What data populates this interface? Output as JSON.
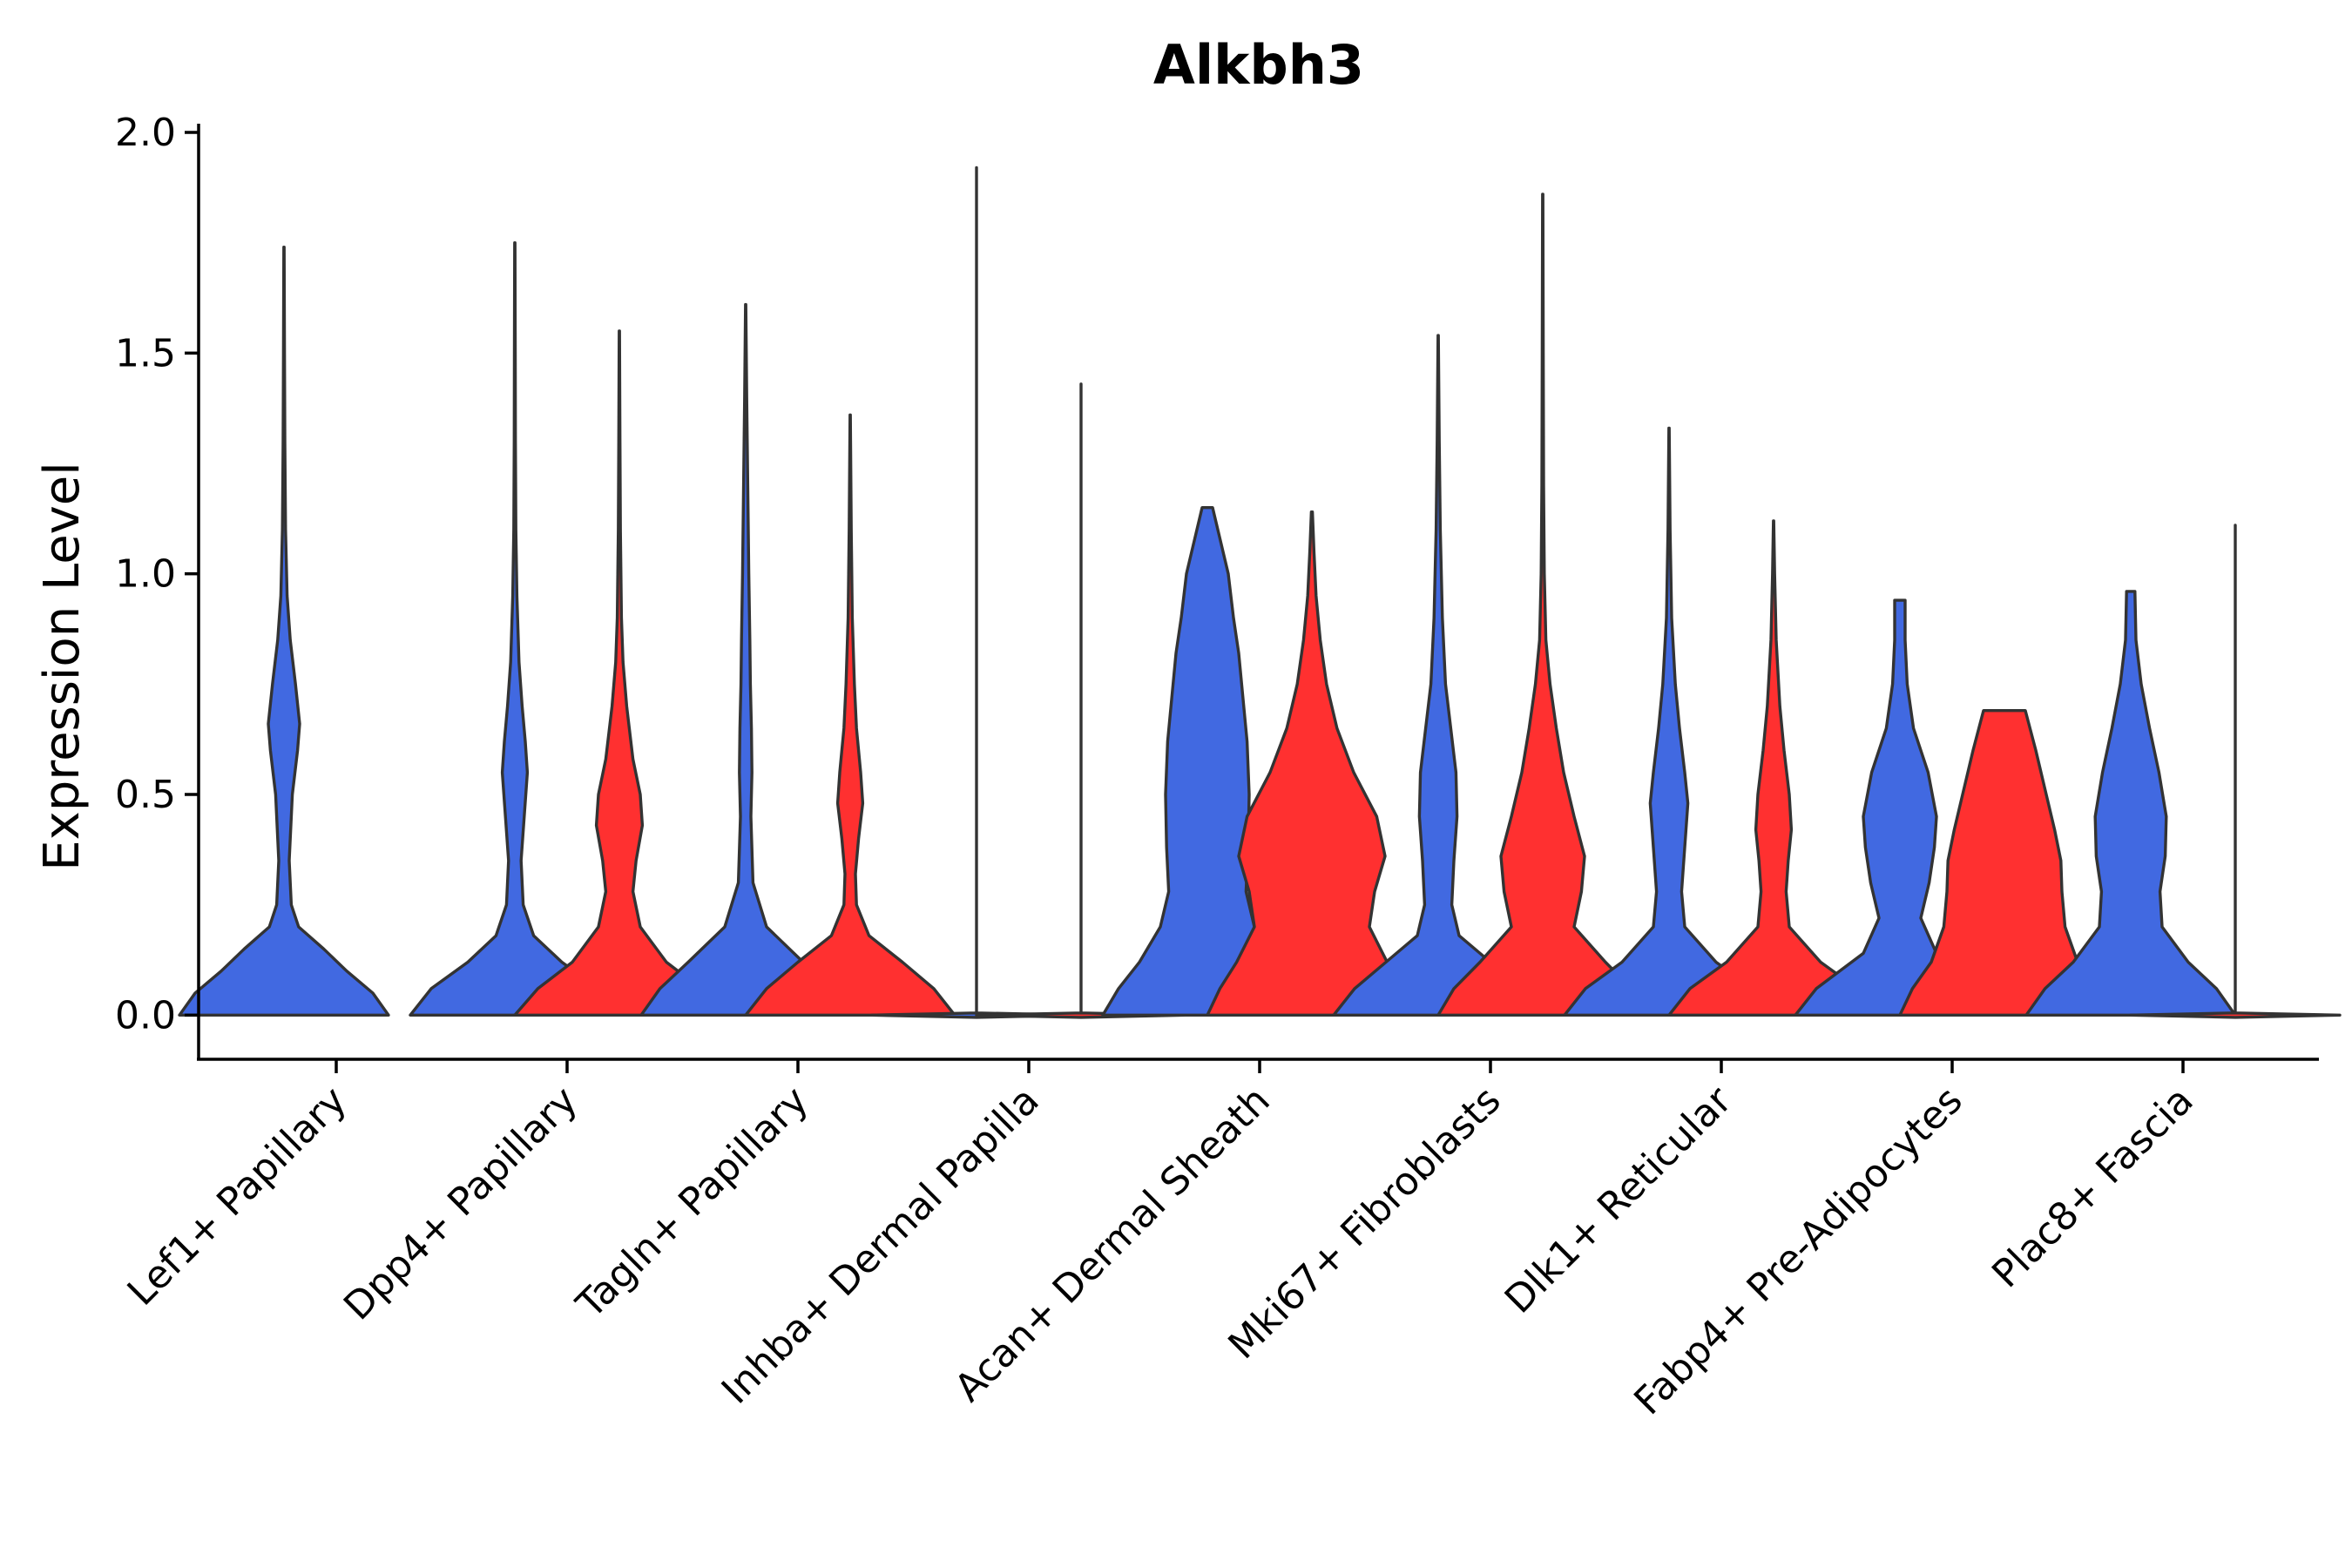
{
  "chart_data": {
    "type": "violin",
    "title": "Alkbh3",
    "xlabel": "",
    "ylabel": "Expression Level",
    "ylim": [
      -0.1,
      2.0
    ],
    "yticks": [
      "0.0",
      "0.5",
      "1.0",
      "1.5",
      "2.0"
    ],
    "categories": [
      "Lef1+ Papillary",
      "Dpp4+ Papillary",
      "Tagln+ Papillary",
      "Inhba+ Dermal Papilla",
      "Acan+ Dermal Sheath",
      "Mki67+ Fibroblasts",
      "Dlk1+ Reticular",
      "Fabp4+ Pre-Adipocytes",
      "Plac8+ Fascia"
    ],
    "groups": [
      {
        "name": "group1",
        "color": "#4169E1"
      },
      {
        "name": "group2",
        "color": "#FF3030"
      }
    ],
    "violins": [
      {
        "category": 0,
        "group": 0,
        "max": 1.74,
        "profile": [
          [
            0,
            1.0
          ],
          [
            0.05,
            0.85
          ],
          [
            0.1,
            0.6
          ],
          [
            0.15,
            0.38
          ],
          [
            0.2,
            0.14
          ],
          [
            0.25,
            0.07
          ],
          [
            0.35,
            0.05
          ],
          [
            0.5,
            0.08
          ],
          [
            0.6,
            0.13
          ],
          [
            0.66,
            0.15
          ],
          [
            0.75,
            0.11
          ],
          [
            0.85,
            0.06
          ],
          [
            0.95,
            0.03
          ],
          [
            1.1,
            0.015
          ],
          [
            1.3,
            0.008
          ],
          [
            1.5,
            0.005
          ],
          [
            1.74,
            0.002
          ]
        ]
      },
      {
        "category": 1,
        "group": 0,
        "max": 1.75,
        "profile": [
          [
            0,
            1.0
          ],
          [
            0.06,
            0.8
          ],
          [
            0.12,
            0.45
          ],
          [
            0.18,
            0.18
          ],
          [
            0.25,
            0.08
          ],
          [
            0.35,
            0.06
          ],
          [
            0.45,
            0.09
          ],
          [
            0.55,
            0.12
          ],
          [
            0.62,
            0.1
          ],
          [
            0.7,
            0.07
          ],
          [
            0.8,
            0.04
          ],
          [
            0.95,
            0.02
          ],
          [
            1.1,
            0.01
          ],
          [
            1.3,
            0.006
          ],
          [
            1.5,
            0.004
          ],
          [
            1.75,
            0.002
          ]
        ]
      },
      {
        "category": 1,
        "group": 1,
        "max": 1.55,
        "profile": [
          [
            0,
            1.0
          ],
          [
            0.06,
            0.78
          ],
          [
            0.12,
            0.45
          ],
          [
            0.2,
            0.2
          ],
          [
            0.28,
            0.13
          ],
          [
            0.35,
            0.16
          ],
          [
            0.43,
            0.22
          ],
          [
            0.5,
            0.2
          ],
          [
            0.58,
            0.13
          ],
          [
            0.7,
            0.07
          ],
          [
            0.8,
            0.035
          ],
          [
            0.9,
            0.02
          ],
          [
            1.1,
            0.01
          ],
          [
            1.3,
            0.006
          ],
          [
            1.55,
            0.002
          ]
        ]
      },
      {
        "category": 2,
        "group": 0,
        "max": 1.61,
        "profile": [
          [
            0,
            1.0
          ],
          [
            0.06,
            0.82
          ],
          [
            0.12,
            0.55
          ],
          [
            0.2,
            0.2
          ],
          [
            0.3,
            0.07
          ],
          [
            0.45,
            0.05
          ],
          [
            0.55,
            0.06
          ],
          [
            0.65,
            0.055
          ],
          [
            0.75,
            0.045
          ],
          [
            0.85,
            0.04
          ],
          [
            1.0,
            0.03
          ],
          [
            1.2,
            0.02
          ],
          [
            1.4,
            0.01
          ],
          [
            1.61,
            0.002
          ]
        ]
      },
      {
        "category": 2,
        "group": 1,
        "max": 1.36,
        "profile": [
          [
            0,
            1.0
          ],
          [
            0.06,
            0.8
          ],
          [
            0.12,
            0.5
          ],
          [
            0.18,
            0.18
          ],
          [
            0.25,
            0.06
          ],
          [
            0.32,
            0.05
          ],
          [
            0.4,
            0.08
          ],
          [
            0.48,
            0.12
          ],
          [
            0.55,
            0.1
          ],
          [
            0.65,
            0.06
          ],
          [
            0.75,
            0.04
          ],
          [
            0.9,
            0.02
          ],
          [
            1.1,
            0.01
          ],
          [
            1.36,
            0.002
          ]
        ]
      },
      {
        "category": 3,
        "group": 0,
        "max": 1.92,
        "profile": [
          [
            -0.005,
            0.0
          ],
          [
            0,
            1.0
          ],
          [
            0.005,
            0.0
          ],
          [
            0.5,
            0.0
          ],
          [
            1.0,
            0.0
          ],
          [
            1.5,
            0.0
          ],
          [
            1.92,
            0.0
          ]
        ]
      },
      {
        "category": 3,
        "group": 1,
        "max": 1.43,
        "profile": [
          [
            -0.005,
            0.0
          ],
          [
            0,
            1.0
          ],
          [
            0.005,
            0.0
          ],
          [
            0.5,
            0.0
          ],
          [
            1.0,
            0.0
          ],
          [
            1.43,
            0.0
          ]
        ]
      },
      {
        "category": 4,
        "group": 0,
        "max": 1.15,
        "profile": [
          [
            0,
            1.0
          ],
          [
            0.06,
            0.85
          ],
          [
            0.12,
            0.65
          ],
          [
            0.2,
            0.45
          ],
          [
            0.28,
            0.37
          ],
          [
            0.38,
            0.39
          ],
          [
            0.5,
            0.4
          ],
          [
            0.62,
            0.38
          ],
          [
            0.72,
            0.34
          ],
          [
            0.82,
            0.3
          ],
          [
            0.9,
            0.25
          ],
          [
            1.0,
            0.2
          ],
          [
            1.08,
            0.12
          ],
          [
            1.15,
            0.05
          ]
        ]
      },
      {
        "category": 4,
        "group": 1,
        "max": 1.14,
        "profile": [
          [
            0,
            1.0
          ],
          [
            0.06,
            0.88
          ],
          [
            0.12,
            0.72
          ],
          [
            0.2,
            0.55
          ],
          [
            0.28,
            0.6
          ],
          [
            0.36,
            0.7
          ],
          [
            0.45,
            0.62
          ],
          [
            0.55,
            0.4
          ],
          [
            0.65,
            0.24
          ],
          [
            0.75,
            0.14
          ],
          [
            0.85,
            0.08
          ],
          [
            0.95,
            0.04
          ],
          [
            1.05,
            0.02
          ],
          [
            1.14,
            0.005
          ]
        ]
      },
      {
        "category": 5,
        "group": 0,
        "max": 1.54,
        "profile": [
          [
            0,
            1.0
          ],
          [
            0.06,
            0.8
          ],
          [
            0.12,
            0.5
          ],
          [
            0.18,
            0.2
          ],
          [
            0.25,
            0.13
          ],
          [
            0.35,
            0.15
          ],
          [
            0.45,
            0.18
          ],
          [
            0.55,
            0.17
          ],
          [
            0.65,
            0.12
          ],
          [
            0.75,
            0.07
          ],
          [
            0.9,
            0.04
          ],
          [
            1.1,
            0.02
          ],
          [
            1.3,
            0.01
          ],
          [
            1.54,
            0.002
          ]
        ]
      },
      {
        "category": 5,
        "group": 1,
        "max": 1.86,
        "profile": [
          [
            0,
            1.0
          ],
          [
            0.06,
            0.85
          ],
          [
            0.12,
            0.6
          ],
          [
            0.2,
            0.3
          ],
          [
            0.28,
            0.37
          ],
          [
            0.36,
            0.4
          ],
          [
            0.45,
            0.3
          ],
          [
            0.55,
            0.2
          ],
          [
            0.65,
            0.13
          ],
          [
            0.75,
            0.07
          ],
          [
            0.85,
            0.03
          ],
          [
            1.0,
            0.015
          ],
          [
            1.2,
            0.008
          ],
          [
            1.5,
            0.005
          ],
          [
            1.86,
            0.002
          ]
        ]
      },
      {
        "category": 6,
        "group": 0,
        "max": 1.33,
        "profile": [
          [
            0,
            1.0
          ],
          [
            0.06,
            0.8
          ],
          [
            0.12,
            0.45
          ],
          [
            0.2,
            0.15
          ],
          [
            0.28,
            0.12
          ],
          [
            0.38,
            0.15
          ],
          [
            0.48,
            0.18
          ],
          [
            0.55,
            0.15
          ],
          [
            0.65,
            0.1
          ],
          [
            0.75,
            0.06
          ],
          [
            0.9,
            0.025
          ],
          [
            1.1,
            0.01
          ],
          [
            1.33,
            0.002
          ]
        ]
      },
      {
        "category": 6,
        "group": 1,
        "max": 1.12,
        "profile": [
          [
            0,
            1.0
          ],
          [
            0.06,
            0.8
          ],
          [
            0.12,
            0.45
          ],
          [
            0.2,
            0.15
          ],
          [
            0.28,
            0.12
          ],
          [
            0.35,
            0.14
          ],
          [
            0.42,
            0.17
          ],
          [
            0.5,
            0.15
          ],
          [
            0.6,
            0.1
          ],
          [
            0.7,
            0.06
          ],
          [
            0.85,
            0.025
          ],
          [
            1.0,
            0.01
          ],
          [
            1.12,
            0.002
          ]
        ]
      },
      {
        "category": 7,
        "group": 0,
        "max": 0.94,
        "profile": [
          [
            0,
            1.0
          ],
          [
            0.06,
            0.8
          ],
          [
            0.14,
            0.35
          ],
          [
            0.22,
            0.2
          ],
          [
            0.3,
            0.28
          ],
          [
            0.38,
            0.33
          ],
          [
            0.45,
            0.35
          ],
          [
            0.55,
            0.27
          ],
          [
            0.65,
            0.13
          ],
          [
            0.75,
            0.07
          ],
          [
            0.85,
            0.05
          ],
          [
            0.94,
            0.05
          ]
        ]
      },
      {
        "category": 7,
        "group": 1,
        "max": 0.69,
        "profile": [
          [
            0,
            1.0
          ],
          [
            0.06,
            0.88
          ],
          [
            0.12,
            0.7
          ],
          [
            0.2,
            0.58
          ],
          [
            0.28,
            0.55
          ],
          [
            0.35,
            0.54
          ],
          [
            0.42,
            0.48
          ],
          [
            0.5,
            0.4
          ],
          [
            0.6,
            0.3
          ],
          [
            0.69,
            0.2
          ]
        ]
      },
      {
        "category": 8,
        "group": 0,
        "max": 0.96,
        "profile": [
          [
            0,
            1.0
          ],
          [
            0.06,
            0.82
          ],
          [
            0.12,
            0.55
          ],
          [
            0.2,
            0.3
          ],
          [
            0.28,
            0.28
          ],
          [
            0.36,
            0.33
          ],
          [
            0.45,
            0.34
          ],
          [
            0.55,
            0.27
          ],
          [
            0.65,
            0.18
          ],
          [
            0.75,
            0.1
          ],
          [
            0.85,
            0.05
          ],
          [
            0.96,
            0.04
          ]
        ]
      },
      {
        "category": 8,
        "group": 1,
        "max": 1.11,
        "profile": [
          [
            -0.005,
            0.0
          ],
          [
            0,
            1.0
          ],
          [
            0.005,
            0.0
          ],
          [
            0.3,
            0.0
          ],
          [
            0.6,
            0.0
          ],
          [
            0.9,
            0.0
          ],
          [
            1.11,
            0.0
          ]
        ]
      }
    ]
  }
}
